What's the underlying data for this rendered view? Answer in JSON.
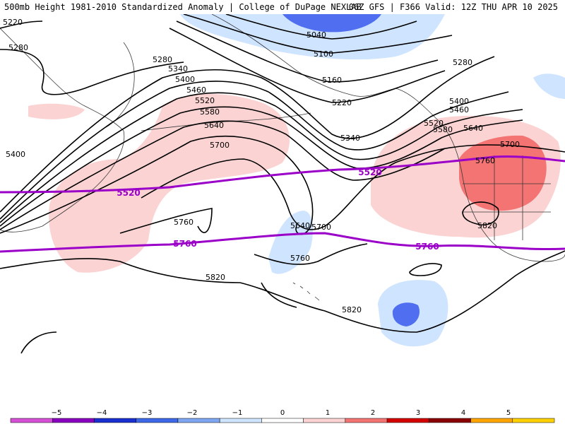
{
  "title": {
    "left": "500mb Height 1981-2010 Standardized Anomaly | College of DuPage NEXLAB",
    "right": "06Z GFS | F366 Valid: 12Z THU APR 10 2025"
  },
  "colors": {
    "neg_strong": "#4f6ff0",
    "neg_weak": "#cfe4ff",
    "neg_mid": "#a9c8f5",
    "pos_weak": "#fbd3d3",
    "pos_mid": "#f47373",
    "contour": "#000000",
    "thickness": "#9a00c8",
    "coast": "#3a3a3a"
  },
  "contour_labels": [
    "5220",
    "5280",
    "5280",
    "5400",
    "5340",
    "5400",
    "5460",
    "5520",
    "5580",
    "5640",
    "5700",
    "5760",
    "5040",
    "5100",
    "5160",
    "5220",
    "5340",
    "5280",
    "5400",
    "5460",
    "5520",
    "5580",
    "5640",
    "5700",
    "5760",
    "5820",
    "5640",
    "5700",
    "5760",
    "5820",
    "5820"
  ],
  "thickness_labels": [
    "5520",
    "5520",
    "5760",
    "5760"
  ],
  "legend": {
    "ticks": [
      "−5",
      "−4",
      "−3",
      "−2",
      "−1",
      "0",
      "1",
      "2",
      "3",
      "4",
      "5"
    ],
    "colors": [
      "#d54fd7",
      "#8a00c0",
      "#1a2fd0",
      "#3d68e8",
      "#7fa6f0",
      "#cfe4ff",
      "#ffffff",
      "#fbd3d3",
      "#f47373",
      "#d40000",
      "#8a0000",
      "#ffa500",
      "#ffd100"
    ]
  }
}
